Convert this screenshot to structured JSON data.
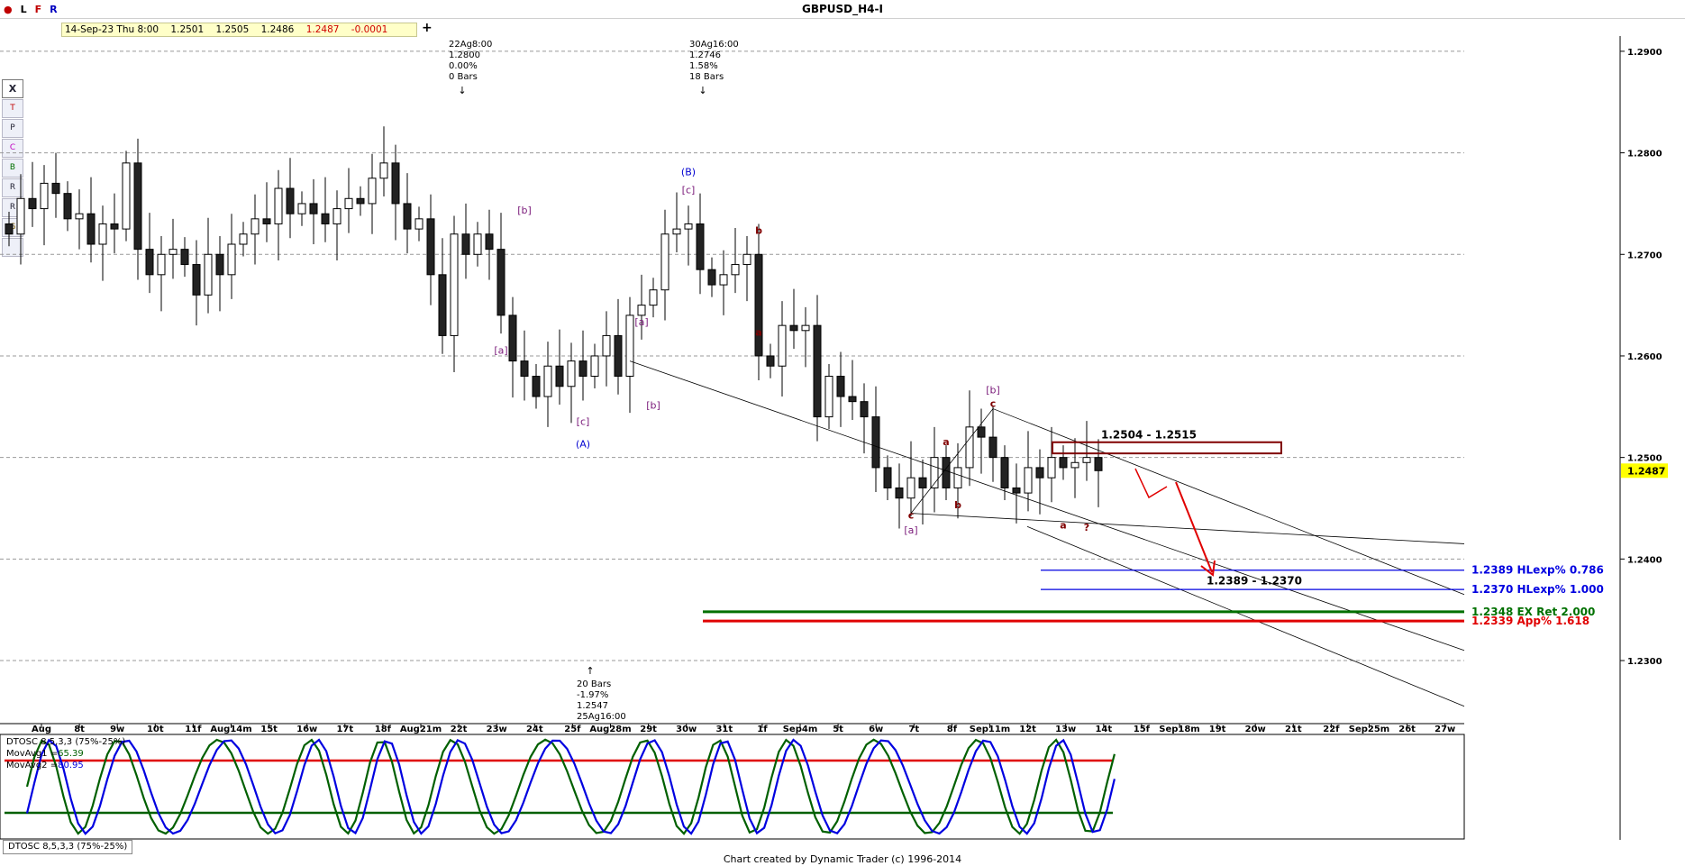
{
  "window": {
    "title": "GBPUSD_H4-I",
    "toolbar": [
      "L",
      "F",
      "R"
    ],
    "quote": {
      "datetime": "14-Sep-23 Thu 8:00",
      "open": "1.2501",
      "high": "1.2505",
      "low": "1.2486",
      "close": "1.2487",
      "change": "-0.0001"
    },
    "add_label": "+",
    "tools": [
      "X",
      "T",
      "P",
      "C",
      "B",
      "R",
      "R",
      "G",
      ""
    ],
    "footer": "Chart created by Dynamic Trader  (c) 1996-2014",
    "osc_tab": "DTOSC 8,5,3,3 (75%-25%)"
  },
  "chart_data": [
    {
      "type": "candlestick",
      "title": "GBPUSD_H4-I",
      "ylim": [
        1.2245,
        1.2915
      ],
      "yticks": [
        "1.2900",
        "1.2800",
        "1.2700",
        "1.2600",
        "1.2500",
        "1.2400",
        "1.2300"
      ],
      "last_price": "1.2487",
      "x_labels": [
        "Aug",
        "8t",
        "9w",
        "10t",
        "11f",
        "Aug14m",
        "15t",
        "16w",
        "17t",
        "18f",
        "Aug21m",
        "22t",
        "23w",
        "24t",
        "25f",
        "Aug28m",
        "29t",
        "30w",
        "31t",
        "1f",
        "Sep4m",
        "5t",
        "6w",
        "7t",
        "8f",
        "Sep11m",
        "12t",
        "13w",
        "14t",
        "15f",
        "Sep18m",
        "19t",
        "20w",
        "21t",
        "22f",
        "Sep25m",
        "26t",
        "27w"
      ],
      "close_path": [
        1.272,
        1.2755,
        1.2745,
        1.277,
        1.276,
        1.2735,
        1.274,
        1.271,
        1.273,
        1.2725,
        1.279,
        1.2705,
        1.268,
        1.27,
        1.2705,
        1.269,
        1.266,
        1.27,
        1.268,
        1.271,
        1.272,
        1.2735,
        1.273,
        1.2765,
        1.274,
        1.275,
        1.274,
        1.273,
        1.2745,
        1.2755,
        1.275,
        1.2775,
        1.279,
        1.275,
        1.2725,
        1.2735,
        1.268,
        1.262,
        1.272,
        1.27,
        1.272,
        1.2705,
        1.264,
        1.2595,
        1.258,
        1.256,
        1.259,
        1.257,
        1.2595,
        1.258,
        1.26,
        1.262,
        1.258,
        1.264,
        1.265,
        1.2665,
        1.272,
        1.2725,
        1.273,
        1.2685,
        1.267,
        1.268,
        1.269,
        1.27,
        1.26,
        1.259,
        1.263,
        1.2625,
        1.263,
        1.254,
        1.258,
        1.256,
        1.2555,
        1.254,
        1.249,
        1.247,
        1.246,
        1.248,
        1.247,
        1.25,
        1.247,
        1.249,
        1.253,
        1.252,
        1.25,
        1.247,
        1.2465,
        1.249,
        1.248,
        1.25,
        1.249,
        1.2495,
        1.25,
        1.2487
      ],
      "range_labels": [
        {
          "lines": [
            "22Ag8:00",
            "1.2800",
            "0.00%",
            "0 Bars"
          ],
          "arrow": "↓"
        },
        {
          "lines": [
            "30Ag16:00",
            "1.2746",
            "1.58%",
            "18 Bars"
          ],
          "arrow": "↓"
        },
        {
          "lines": [
            "20 Bars",
            "-1.97%",
            "1.2547",
            "25Ag16:00"
          ],
          "arrow": "↑"
        }
      ],
      "wave_labels": [
        {
          "text": "(B)",
          "price": 1.2778,
          "bar": 58,
          "color": "#0000d0"
        },
        {
          "text": "[c]",
          "price": 1.276,
          "bar": 58,
          "color": "#7a1a7a"
        },
        {
          "text": "[b]",
          "price": 1.274,
          "bar": 44,
          "color": "#7a1a7a"
        },
        {
          "text": "[a]",
          "price": 1.2602,
          "bar": 42,
          "color": "#7a1a7a"
        },
        {
          "text": "[c]",
          "price": 1.2532,
          "bar": 49,
          "color": "#7a1a7a"
        },
        {
          "text": "(A)",
          "price": 1.251,
          "bar": 49,
          "color": "#0000d0"
        },
        {
          "text": "[a]",
          "price": 1.263,
          "bar": 54,
          "color": "#7a1a7a"
        },
        {
          "text": "[b]",
          "price": 1.2548,
          "bar": 55,
          "color": "#7a1a7a"
        },
        {
          "text": "b",
          "price": 1.272,
          "bar": 64,
          "color": "#800000"
        },
        {
          "text": "a",
          "price": 1.262,
          "bar": 64,
          "color": "#800000"
        },
        {
          "text": "[b]",
          "price": 1.2563,
          "bar": 84,
          "color": "#7a1a7a"
        },
        {
          "text": "c",
          "price": 1.255,
          "bar": 84,
          "color": "#800000"
        },
        {
          "text": "a",
          "price": 1.2512,
          "bar": 80,
          "color": "#800000"
        },
        {
          "text": "b",
          "price": 1.245,
          "bar": 81,
          "color": "#800000"
        },
        {
          "text": "c",
          "price": 1.244,
          "bar": 77,
          "color": "#800000"
        },
        {
          "text": "[a]",
          "price": 1.2425,
          "bar": 77,
          "color": "#7a1a7a"
        },
        {
          "text": "a",
          "price": 1.243,
          "bar": 90,
          "color": "#800000"
        },
        {
          "text": "?",
          "price": 1.2428,
          "bar": 92,
          "color": "#800000"
        }
      ],
      "zones": [
        {
          "label": "1.2504 - 1.2515",
          "from": 1.2504,
          "to": 1.2515
        },
        {
          "label": "1.2389 - 1.2370",
          "from": 1.2389,
          "to": 1.237
        }
      ],
      "levels": [
        {
          "label": "1.2389 HLexp% 0.786",
          "price": 1.2389,
          "color": "#0000e0"
        },
        {
          "label": "1.2370 HLexp% 1.000",
          "price": 1.237,
          "color": "#0000e0"
        },
        {
          "label": "1.2348 EX Ret 2.000",
          "price": 1.2348,
          "color": "#007000"
        },
        {
          "label": "1.2339 App% 1.618",
          "price": 1.2339,
          "color": "#e00000"
        }
      ]
    },
    {
      "type": "line",
      "title": "DTOSC 8,5,3,3 (75%-25%)",
      "ylim": [
        0,
        100
      ],
      "thresholds": [
        75,
        25
      ],
      "series": [
        {
          "name": "MovAvg1",
          "value": "65.39",
          "color": "#006000"
        },
        {
          "name": "MovAvg2",
          "value": "80.95",
          "color": "#0000e0"
        }
      ],
      "threshold_colors": {
        "upper": "#e00000",
        "lower": "#006000"
      }
    }
  ]
}
